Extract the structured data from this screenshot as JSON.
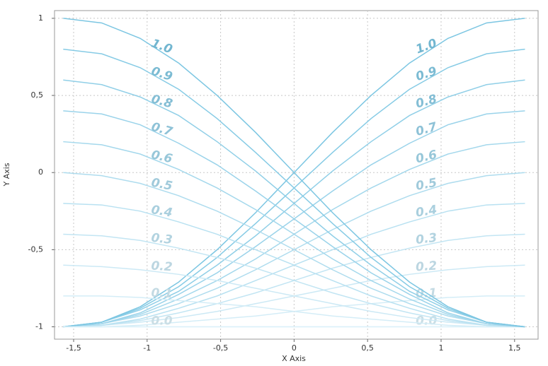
{
  "chart_data": {
    "type": "line",
    "x_label": "X Axis",
    "y_label": "Y Axis",
    "x": [
      -1.5708,
      -1.309,
      -1.0472,
      -0.7854,
      -0.5236,
      -0.2618,
      0,
      0.2618,
      0.5236,
      0.7854,
      1.0472,
      1.309,
      1.5708
    ],
    "xlim": [
      -1.63,
      1.66
    ],
    "ylim": [
      -1.08,
      1.05
    ],
    "xticks": [
      {
        "value": -1.5,
        "label": "-1,5"
      },
      -1,
      {
        "value": -0.5,
        "label": "-0,5"
      },
      0,
      {
        "value": 0.5,
        "label": "0,5"
      },
      1,
      {
        "value": 1.5,
        "label": "1,5"
      }
    ],
    "yticks": [
      -1,
      {
        "value": -0.5,
        "label": "-0,5"
      },
      0,
      {
        "value": 0.5,
        "label": "0,5"
      },
      1
    ],
    "grid": true,
    "series": [
      {
        "name": "1.0",
        "color": "#7cc6e2",
        "values": [
          1,
          0.97,
          0.87,
          0.71,
          0.5,
          0.26,
          0,
          -0.26,
          -0.5,
          -0.71,
          -0.87,
          -0.97,
          -1
        ]
      },
      {
        "name": "0.9",
        "color": "#86cbe5",
        "values": [
          0.8,
          0.77,
          0.68,
          0.54,
          0.35,
          0.13,
          -0.1,
          -0.33,
          -0.55,
          -0.74,
          -0.88,
          -0.97,
          -1
        ]
      },
      {
        "name": "0.8",
        "color": "#90cfe7",
        "values": [
          0.6,
          0.57,
          0.49,
          0.37,
          0.2,
          0.01,
          -0.2,
          -0.41,
          -0.6,
          -0.77,
          -0.89,
          -0.97,
          -1
        ]
      },
      {
        "name": "0.7",
        "color": "#9ad3ea",
        "values": [
          0.4,
          0.38,
          0.31,
          0.19,
          0.05,
          -0.12,
          -0.3,
          -0.48,
          -0.65,
          -0.79,
          -0.91,
          -0.98,
          -1
        ]
      },
      {
        "name": "0.6",
        "color": "#a4d8ec",
        "values": [
          0.2,
          0.18,
          0.12,
          0.02,
          -0.1,
          -0.24,
          -0.4,
          -0.56,
          -0.7,
          -0.82,
          -0.92,
          -0.98,
          -1
        ]
      },
      {
        "name": "0.5",
        "color": "#aedcee",
        "values": [
          0,
          -0.02,
          -0.07,
          -0.15,
          -0.25,
          -0.37,
          -0.5,
          -0.63,
          -0.75,
          -0.85,
          -0.93,
          -0.98,
          -1
        ]
      },
      {
        "name": "0.4",
        "color": "#b8e1f1",
        "values": [
          -0.2,
          -0.21,
          -0.25,
          -0.32,
          -0.4,
          -0.5,
          -0.6,
          -0.7,
          -0.8,
          -0.88,
          -0.95,
          -0.99,
          -1
        ]
      },
      {
        "name": "0.3",
        "color": "#c2e5f3",
        "values": [
          -0.4,
          -0.41,
          -0.44,
          -0.49,
          -0.55,
          -0.62,
          -0.7,
          -0.78,
          -0.85,
          -0.91,
          -0.96,
          -0.99,
          -1
        ]
      },
      {
        "name": "0.2",
        "color": "#cce9f5",
        "values": [
          -0.6,
          -0.61,
          -0.63,
          -0.66,
          -0.7,
          -0.75,
          -0.8,
          -0.85,
          -0.9,
          -0.94,
          -0.97,
          -0.99,
          -1
        ]
      },
      {
        "name": "0.1",
        "color": "#d4edf7",
        "values": [
          -0.8,
          -0.8,
          -0.81,
          -0.83,
          -0.85,
          -0.87,
          -0.9,
          -0.93,
          -0.95,
          -0.97,
          -0.99,
          -1,
          -1
        ]
      },
      {
        "name": "0.0",
        "color": "#dcf1f9",
        "values": [
          -1,
          -1,
          -1,
          -1,
          -1,
          -1,
          -1,
          -1,
          -1,
          -1,
          -1,
          -1,
          -1
        ]
      },
      {
        "name": "1.0",
        "color": "#7cc6e2",
        "values": [
          -1,
          -0.97,
          -0.87,
          -0.71,
          -0.5,
          -0.26,
          0,
          0.26,
          0.5,
          0.71,
          0.87,
          0.97,
          1
        ]
      },
      {
        "name": "0.9",
        "color": "#86cbe5",
        "values": [
          -1,
          -0.97,
          -0.88,
          -0.74,
          -0.55,
          -0.33,
          -0.1,
          0.13,
          0.35,
          0.54,
          0.68,
          0.77,
          0.8
        ]
      },
      {
        "name": "0.8",
        "color": "#90cfe7",
        "values": [
          -1,
          -0.97,
          -0.89,
          -0.77,
          -0.6,
          -0.41,
          -0.2,
          0.01,
          0.2,
          0.37,
          0.49,
          0.57,
          0.6
        ]
      },
      {
        "name": "0.7",
        "color": "#9ad3ea",
        "values": [
          -1,
          -0.98,
          -0.91,
          -0.79,
          -0.65,
          -0.48,
          -0.3,
          -0.12,
          0.05,
          0.19,
          0.31,
          0.38,
          0.4
        ]
      },
      {
        "name": "0.6",
        "color": "#a4d8ec",
        "values": [
          -1,
          -0.98,
          -0.92,
          -0.82,
          -0.7,
          -0.56,
          -0.4,
          -0.24,
          -0.1,
          0.02,
          0.12,
          0.18,
          0.2
        ]
      },
      {
        "name": "0.5",
        "color": "#aedcee",
        "values": [
          -1,
          -0.98,
          -0.93,
          -0.85,
          -0.75,
          -0.63,
          -0.5,
          -0.37,
          -0.25,
          -0.15,
          -0.07,
          -0.02,
          0
        ]
      },
      {
        "name": "0.4",
        "color": "#b8e1f1",
        "values": [
          -1,
          -0.99,
          -0.95,
          -0.88,
          -0.8,
          -0.7,
          -0.6,
          -0.5,
          -0.4,
          -0.32,
          -0.25,
          -0.21,
          -0.2
        ]
      },
      {
        "name": "0.3",
        "color": "#c2e5f3",
        "values": [
          -1,
          -0.99,
          -0.96,
          -0.91,
          -0.85,
          -0.78,
          -0.7,
          -0.62,
          -0.55,
          -0.49,
          -0.44,
          -0.41,
          -0.4
        ]
      },
      {
        "name": "0.2",
        "color": "#cce9f5",
        "values": [
          -1,
          -0.99,
          -0.97,
          -0.94,
          -0.9,
          -0.85,
          -0.8,
          -0.75,
          -0.7,
          -0.66,
          -0.63,
          -0.61,
          -0.6
        ]
      },
      {
        "name": "0.1",
        "color": "#d4edf7",
        "values": [
          -1,
          -1,
          -0.99,
          -0.97,
          -0.95,
          -0.93,
          -0.9,
          -0.87,
          -0.85,
          -0.83,
          -0.81,
          -0.8,
          -0.8
        ]
      },
      {
        "name": "0.0",
        "color": "#dcf1f9",
        "values": [
          -1,
          -1,
          -1,
          -1,
          -1,
          -1,
          -1,
          -1,
          -1,
          -1,
          -1,
          -1,
          -1
        ]
      }
    ]
  }
}
